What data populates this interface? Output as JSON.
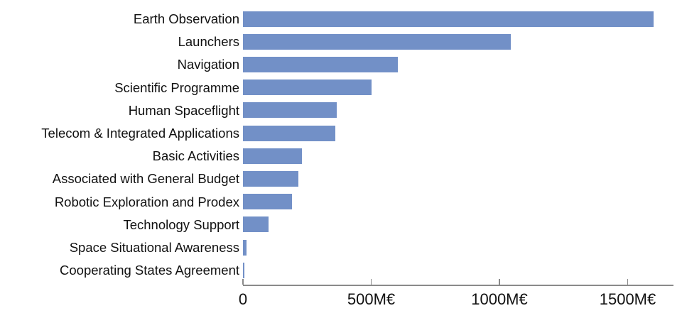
{
  "chart_data": {
    "type": "bar",
    "orientation": "horizontal",
    "title": "",
    "xlabel": "",
    "ylabel": "",
    "unit": "M€",
    "categories": [
      "Earth Observation",
      "Launchers",
      "Navigation",
      "Scientific Programme",
      "Human Spaceflight",
      "Telecom & Integrated Applications",
      "Basic Activities",
      "Associated with General Budget",
      "Robotic Exploration and Prodex",
      "Technology Support",
      "Space Situational Awareness",
      "Cooperating States Agreement"
    ],
    "values": [
      1600,
      1045,
      605,
      500,
      365,
      360,
      230,
      215,
      190,
      100,
      15,
      5
    ],
    "x_axis": {
      "range": [
        0,
        1680
      ],
      "ticks": [
        0,
        500,
        1000,
        1500
      ],
      "tick_labels": [
        "0",
        "500M€",
        "1000M€",
        "1500M€"
      ]
    },
    "grid": false,
    "legend": false,
    "colors": {
      "bar": "#7290c7",
      "axis": "#8a8a8a",
      "text": "#111111"
    }
  }
}
